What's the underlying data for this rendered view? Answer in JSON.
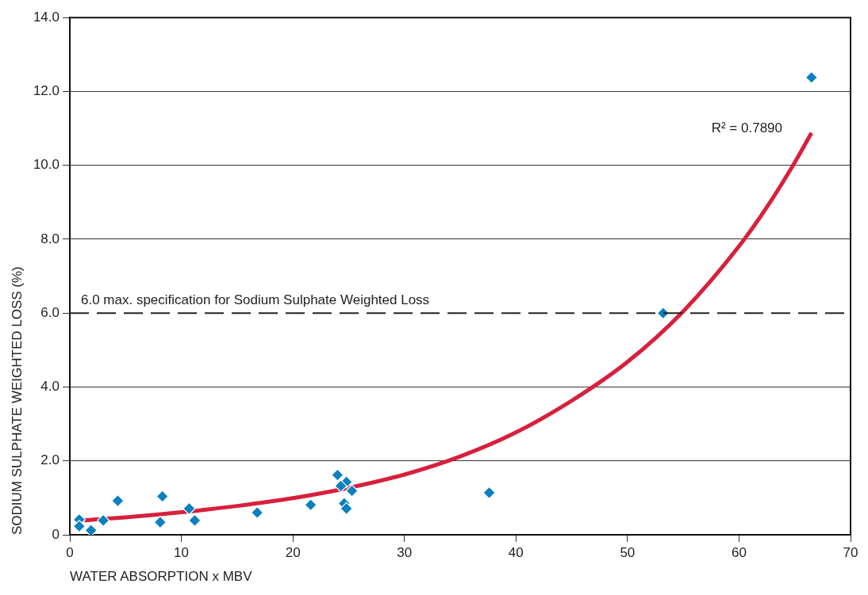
{
  "chart_data": {
    "type": "scatter",
    "xlabel": "WATER ABSORPTION x MBV",
    "ylabel": "SODIUM SULPHATE WEIGHTED LOSS (%)",
    "xlim": [
      0,
      70
    ],
    "xticks": [
      0,
      10,
      20,
      30,
      40,
      50,
      60,
      70
    ],
    "ylim": [
      0,
      14
    ],
    "yticks": [
      0,
      {
        "value": 2,
        "label": "2.0"
      },
      {
        "value": 4,
        "label": "4.0"
      },
      {
        "value": 6,
        "label": "6.0"
      },
      {
        "value": 8,
        "label": "8.0"
      },
      {
        "value": 10,
        "label": "10.0"
      },
      {
        "value": 12,
        "label": "12.0"
      },
      {
        "value": 14,
        "label": "14.0"
      }
    ],
    "grid": "y",
    "legend": false,
    "series": [
      {
        "color": "#0a80c0",
        "marker": "diamond",
        "x": [
          0.85,
          0.85,
          1.9,
          3.0,
          4.3,
          8.1,
          8.3,
          10.7,
          11.2,
          16.8,
          21.6,
          24.0,
          24.8,
          24.3,
          25.3,
          24.6,
          24.8,
          37.6,
          53.2,
          66.5
        ],
        "values": [
          0.41,
          0.23,
          0.12,
          0.39,
          0.92,
          0.34,
          1.04,
          0.71,
          0.39,
          0.6,
          0.81,
          1.62,
          1.43,
          1.32,
          1.19,
          0.85,
          0.71,
          1.14,
          6.0,
          12.38
        ]
      },
      {
        "type": "line",
        "color": "#d7203c",
        "marker": "none",
        "line_style": "solid",
        "x": [
          1.3,
          5,
          10,
          15,
          20,
          25,
          30,
          35,
          40,
          45,
          50,
          55,
          60,
          62.5,
          65,
          66.5
        ],
        "values": [
          0.39,
          0.47,
          0.61,
          0.78,
          0.99,
          1.27,
          1.63,
          2.12,
          2.77,
          3.63,
          4.68,
          6.05,
          7.81,
          8.87,
          10.08,
          10.88
        ]
      }
    ],
    "ref_lines": [
      {
        "axis": "y",
        "value": 6,
        "label": "6.0 max. specification for Sodium Sulphate Weighted Loss",
        "color": "#222222",
        "line_style": "dashed"
      }
    ],
    "annotations": [
      "R² = 0.7890"
    ]
  }
}
